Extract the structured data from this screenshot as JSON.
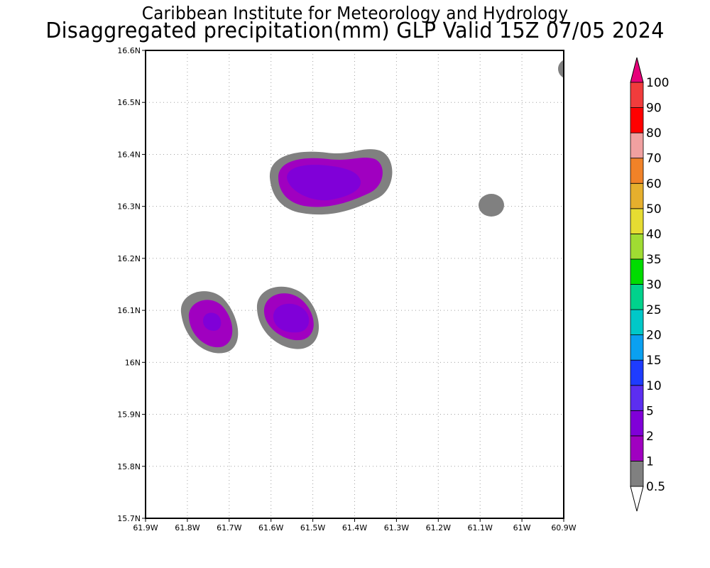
{
  "header": {
    "title_line1": "Caribbean Institute for Meteorology and Hydrology",
    "title_line2": "Disaggregated precipitation(mm) GLP Valid 15Z 07/05 2024"
  },
  "map": {
    "lon_range": [
      -61.9,
      -60.9
    ],
    "lat_range": [
      15.7,
      16.6
    ],
    "x_tick_labels": [
      "61.9W",
      "61.8W",
      "61.7W",
      "61.6W",
      "61.5W",
      "61.4W",
      "61.3W",
      "61.2W",
      "61.1W",
      "61W",
      "60.9W"
    ],
    "y_tick_labels": [
      "15.7N",
      "15.8N",
      "15.9N",
      "16N",
      "16.1N",
      "16.2N",
      "16.3N",
      "16.4N",
      "16.5N",
      "16.6N"
    ],
    "grid": true,
    "precip_cells": [
      {
        "name": "precip-cell-northeast-edge",
        "lon": -60.89,
        "lat": 16.56,
        "max_class": 0
      },
      {
        "name": "precip-cell-northern",
        "lon": -61.47,
        "lat": 16.35,
        "max_class": 2
      },
      {
        "name": "precip-cell-east-small",
        "lon": -61.08,
        "lat": 16.3,
        "max_class": 0
      },
      {
        "name": "precip-cell-southwest",
        "lon": -61.74,
        "lat": 16.08,
        "max_class": 2
      },
      {
        "name": "precip-cell-south-central",
        "lon": -61.56,
        "lat": 16.09,
        "max_class": 2
      }
    ]
  },
  "colorbar": {
    "levels": [
      "0.5",
      "1",
      "2",
      "5",
      "10",
      "15",
      "20",
      "25",
      "30",
      "35",
      "40",
      "50",
      "60",
      "70",
      "80",
      "90",
      "100"
    ],
    "colors": [
      "#808080",
      "#a000c0",
      "#8000d8",
      "#5c2ef0",
      "#1e3cff",
      "#0aa0f0",
      "#00c8c8",
      "#00d28c",
      "#00dc00",
      "#a0dc32",
      "#e6dc32",
      "#e6af2d",
      "#f08228",
      "#f0a0a0",
      "#ff0000",
      "#f03c3c"
    ],
    "low_arrow_color": "#ffffff",
    "high_arrow_color": "#e6007a"
  }
}
